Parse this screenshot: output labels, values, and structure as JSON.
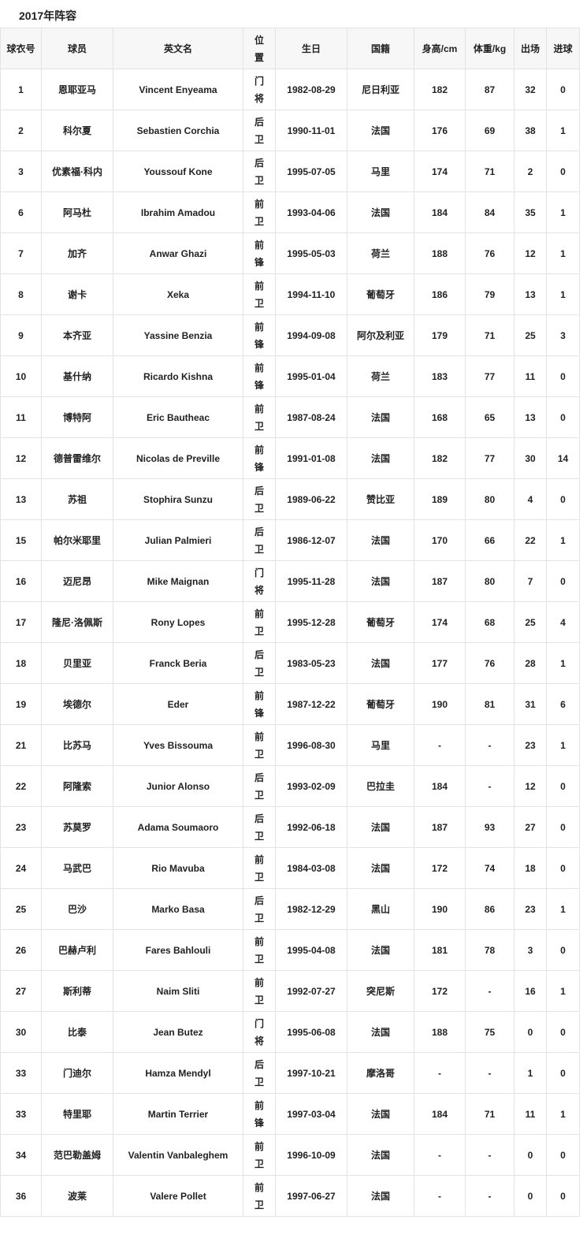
{
  "title": "2017年阵容",
  "columns": [
    "球衣号",
    "球员",
    "英文名",
    "位置",
    "生日",
    "国籍",
    "身高/cm",
    "体重/kg",
    "出场",
    "进球"
  ],
  "rows": [
    [
      "1",
      "恩耶亚马",
      "Vincent Enyeama",
      "门将",
      "1982-08-29",
      "尼日利亚",
      "182",
      "87",
      "32",
      "0"
    ],
    [
      "2",
      "科尔夏",
      "Sebastien Corchia",
      "后卫",
      "1990-11-01",
      "法国",
      "176",
      "69",
      "38",
      "1"
    ],
    [
      "3",
      "优素福·科内",
      "Youssouf Kone",
      "后卫",
      "1995-07-05",
      "马里",
      "174",
      "71",
      "2",
      "0"
    ],
    [
      "6",
      "阿马杜",
      "Ibrahim Amadou",
      "前卫",
      "1993-04-06",
      "法国",
      "184",
      "84",
      "35",
      "1"
    ],
    [
      "7",
      "加齐",
      "Anwar Ghazi",
      "前锋",
      "1995-05-03",
      "荷兰",
      "188",
      "76",
      "12",
      "1"
    ],
    [
      "8",
      "谢卡",
      "Xeka",
      "前卫",
      "1994-11-10",
      "葡萄牙",
      "186",
      "79",
      "13",
      "1"
    ],
    [
      "9",
      "本齐亚",
      "Yassine Benzia",
      "前锋",
      "1994-09-08",
      "阿尔及利亚",
      "179",
      "71",
      "25",
      "3"
    ],
    [
      "10",
      "基什纳",
      "Ricardo Kishna",
      "前锋",
      "1995-01-04",
      "荷兰",
      "183",
      "77",
      "11",
      "0"
    ],
    [
      "11",
      "博特阿",
      "Eric Bautheac",
      "前卫",
      "1987-08-24",
      "法国",
      "168",
      "65",
      "13",
      "0"
    ],
    [
      "12",
      "德普雷维尔",
      "Nicolas de Preville",
      "前锋",
      "1991-01-08",
      "法国",
      "182",
      "77",
      "30",
      "14"
    ],
    [
      "13",
      "苏祖",
      "Stophira Sunzu",
      "后卫",
      "1989-06-22",
      "赞比亚",
      "189",
      "80",
      "4",
      "0"
    ],
    [
      "15",
      "帕尔米耶里",
      "Julian Palmieri",
      "后卫",
      "1986-12-07",
      "法国",
      "170",
      "66",
      "22",
      "1"
    ],
    [
      "16",
      "迈尼昂",
      "Mike Maignan",
      "门将",
      "1995-11-28",
      "法国",
      "187",
      "80",
      "7",
      "0"
    ],
    [
      "17",
      "隆尼·洛佩斯",
      "Rony Lopes",
      "前卫",
      "1995-12-28",
      "葡萄牙",
      "174",
      "68",
      "25",
      "4"
    ],
    [
      "18",
      "贝里亚",
      "Franck Beria",
      "后卫",
      "1983-05-23",
      "法国",
      "177",
      "76",
      "28",
      "1"
    ],
    [
      "19",
      "埃德尔",
      "Eder",
      "前锋",
      "1987-12-22",
      "葡萄牙",
      "190",
      "81",
      "31",
      "6"
    ],
    [
      "21",
      "比苏马",
      "Yves Bissouma",
      "前卫",
      "1996-08-30",
      "马里",
      "-",
      "-",
      "23",
      "1"
    ],
    [
      "22",
      "阿隆索",
      "Junior Alonso",
      "后卫",
      "1993-02-09",
      "巴拉圭",
      "184",
      "-",
      "12",
      "0"
    ],
    [
      "23",
      "苏莫罗",
      "Adama Soumaoro",
      "后卫",
      "1992-06-18",
      "法国",
      "187",
      "93",
      "27",
      "0"
    ],
    [
      "24",
      "马武巴",
      "Rio Mavuba",
      "前卫",
      "1984-03-08",
      "法国",
      "172",
      "74",
      "18",
      "0"
    ],
    [
      "25",
      "巴沙",
      "Marko Basa",
      "后卫",
      "1982-12-29",
      "黑山",
      "190",
      "86",
      "23",
      "1"
    ],
    [
      "26",
      "巴赫卢利",
      "Fares Bahlouli",
      "前卫",
      "1995-04-08",
      "法国",
      "181",
      "78",
      "3",
      "0"
    ],
    [
      "27",
      "斯利蒂",
      "Naim Sliti",
      "前卫",
      "1992-07-27",
      "突尼斯",
      "172",
      "-",
      "16",
      "1"
    ],
    [
      "30",
      "比泰",
      "Jean Butez",
      "门将",
      "1995-06-08",
      "法国",
      "188",
      "75",
      "0",
      "0"
    ],
    [
      "33",
      "门迪尔",
      "Hamza Mendyl",
      "后卫",
      "1997-10-21",
      "摩洛哥",
      "-",
      "-",
      "1",
      "0"
    ],
    [
      "33",
      "特里耶",
      "Martin Terrier",
      "前锋",
      "1997-03-04",
      "法国",
      "184",
      "71",
      "11",
      "1"
    ],
    [
      "34",
      "范巴勒盖姆",
      "Valentin Vanbaleghem",
      "前卫",
      "1996-10-09",
      "法国",
      "-",
      "-",
      "0",
      "0"
    ],
    [
      "36",
      "波莱",
      "Valere Pollet",
      "前卫",
      "1997-06-27",
      "法国",
      "-",
      "-",
      "0",
      "0"
    ]
  ]
}
